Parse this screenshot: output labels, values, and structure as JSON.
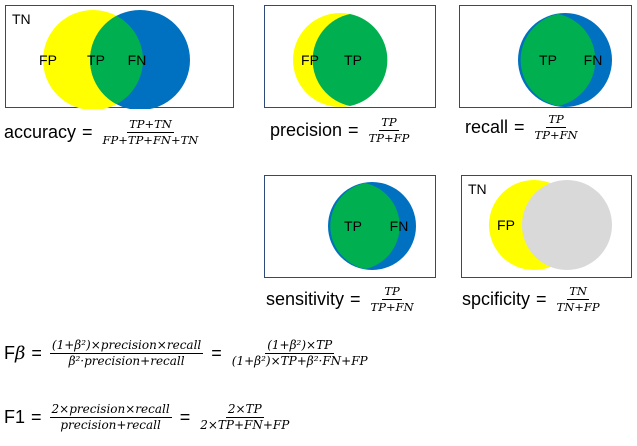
{
  "colors": {
    "fp": "#ffff00",
    "tp": "#00b050",
    "fn": "#0070c0",
    "tn_circle": "#d9d9d9",
    "panel_border": "#2f4a7a"
  },
  "panels": {
    "accuracy": {
      "corner": "TN",
      "fp": "FP",
      "tp": "TP",
      "fn": "FN"
    },
    "precision": {
      "fp": "FP",
      "tp": "TP"
    },
    "recall": {
      "tp": "TP",
      "fn": "FN"
    },
    "sensitivity": {
      "tp": "TP",
      "fn": "FN"
    },
    "specificity": {
      "corner": "TN",
      "fp": "FP"
    }
  },
  "formulas": {
    "accuracy": {
      "name": "accuracy",
      "eq": "=",
      "num": "TP+TN",
      "den": "FP+TP+FN+TN"
    },
    "precision": {
      "name": "precision",
      "eq": "=",
      "num": "TP",
      "den": "TP+FP"
    },
    "recall": {
      "name": "recall",
      "eq": "=",
      "num": "TP",
      "den": "TP+FN"
    },
    "sensitivity": {
      "name": "sensitivity",
      "eq": "=",
      "num": "TP",
      "den": "TP+FN"
    },
    "specificity": {
      "name": "spcificity",
      "eq": "=",
      "num": "TN",
      "den": "TN+FP"
    },
    "fbeta": {
      "name_f": "F",
      "name_sub": "β",
      "eq1": "=",
      "num1": "(1+β²)×precision×recall",
      "den1": "β²·precision+recall",
      "eq2": "=",
      "num2": "(1+β²)×TP",
      "den2": "(1+β²)×TP+β²·FN+FP"
    },
    "f1": {
      "name": "F1",
      "eq1": "=",
      "num1": "2×precision×recall",
      "den1": "precision+recall",
      "eq2": "=",
      "num2": "2×TP",
      "den2": "2×TP+FN+FP"
    }
  }
}
